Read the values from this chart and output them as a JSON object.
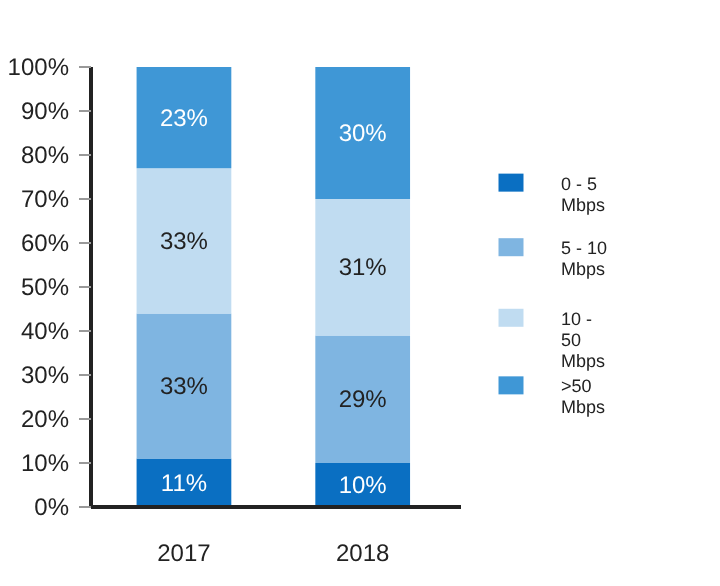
{
  "chart_data": {
    "type": "bar",
    "stacked": true,
    "categories": [
      "2017",
      "2018"
    ],
    "series": [
      {
        "name": "0 - 5 Mbps",
        "color": "#0a6fc2",
        "values": [
          11,
          10
        ],
        "value_labels": [
          "11%",
          "10%"
        ]
      },
      {
        "name": "5 - 10 Mbps",
        "color": "#7fb5e1",
        "values": [
          33,
          29
        ],
        "value_labels": [
          "33%",
          "29%"
        ]
      },
      {
        "name": "10 - 50 Mbps",
        "color": "#c0dcf1",
        "values": [
          33,
          31
        ],
        "value_labels": [
          "33%",
          "31%"
        ]
      },
      {
        "name": ">50 Mbps",
        "color": "#3f97d6",
        "values": [
          23,
          30
        ],
        "value_labels": [
          "23%",
          "30%"
        ]
      }
    ],
    "ylim": [
      0,
      100
    ],
    "yticks": [
      {
        "value": 0,
        "label": "0%"
      },
      {
        "value": 10,
        "label": "10%"
      },
      {
        "value": 20,
        "label": "20%"
      },
      {
        "value": 30,
        "label": "30%"
      },
      {
        "value": 40,
        "label": "40%"
      },
      {
        "value": 50,
        "label": "50%"
      },
      {
        "value": 60,
        "label": "60%"
      },
      {
        "value": 70,
        "label": "70%"
      },
      {
        "value": 80,
        "label": "80%"
      },
      {
        "value": 90,
        "label": "90%"
      },
      {
        "value": 100,
        "label": "100%"
      }
    ],
    "grid": false,
    "legend": "right"
  }
}
